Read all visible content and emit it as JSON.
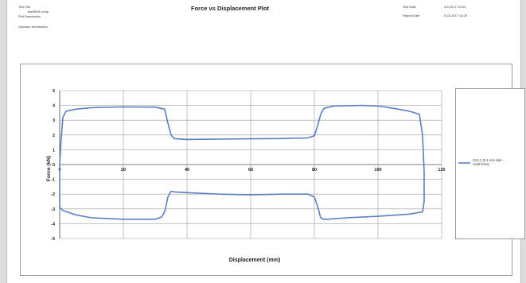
{
  "header": {
    "test_file_label": "Test File",
    "test_file_value": "test9916 comp",
    "plot_description_label": "Plot Description",
    "operator_label": "Operator Information",
    "test_date_label": "Test Date",
    "test_date_value": "4.6.2017 13:35",
    "report_date_label": "Report Date",
    "report_date_value": "5.15.2017 14:25"
  },
  "chart_data": {
    "type": "line",
    "title": "Force vs Displacement Plot",
    "xlabel": "Displacement (mm)",
    "ylabel": "Force (kN)",
    "xlim": [
      0,
      120
    ],
    "ylim": [
      -5,
      5
    ],
    "xticks": [
      0,
      20,
      40,
      60,
      80,
      100,
      120
    ],
    "yticks": [
      -5,
      -4,
      -3,
      -2,
      -1,
      0,
      1,
      2,
      3,
      4,
      5
    ],
    "grid": true,
    "legend_position": "right",
    "series": [
      {
        "name": "SV1.2 (0.1 m/s side - Axial force)",
        "color": "#5b7fc4",
        "points": [
          [
            0,
            0
          ],
          [
            0.4,
            1.5
          ],
          [
            1,
            3.2
          ],
          [
            2,
            3.6
          ],
          [
            5,
            3.75
          ],
          [
            10,
            3.85
          ],
          [
            20,
            3.9
          ],
          [
            30,
            3.88
          ],
          [
            33,
            3.75
          ],
          [
            34,
            2.8
          ],
          [
            35,
            2.0
          ],
          [
            36,
            1.75
          ],
          [
            40,
            1.7
          ],
          [
            50,
            1.72
          ],
          [
            60,
            1.74
          ],
          [
            70,
            1.76
          ],
          [
            78,
            1.8
          ],
          [
            80,
            1.95
          ],
          [
            81,
            2.6
          ],
          [
            82,
            3.4
          ],
          [
            83,
            3.8
          ],
          [
            86,
            3.95
          ],
          [
            95,
            4.0
          ],
          [
            100,
            3.95
          ],
          [
            105,
            3.8
          ],
          [
            110,
            3.6
          ],
          [
            113,
            3.4
          ],
          [
            114,
            2.0
          ],
          [
            114.5,
            -0.5
          ],
          [
            114.5,
            -2.5
          ],
          [
            114,
            -3.2
          ],
          [
            110,
            -3.35
          ],
          [
            100,
            -3.5
          ],
          [
            90,
            -3.6
          ],
          [
            84,
            -3.7
          ],
          [
            83,
            -3.7
          ],
          [
            82,
            -3.6
          ],
          [
            81,
            -2.8
          ],
          [
            80,
            -2.2
          ],
          [
            78,
            -2.0
          ],
          [
            70,
            -2.0
          ],
          [
            60,
            -2.05
          ],
          [
            50,
            -2.0
          ],
          [
            40,
            -1.9
          ],
          [
            36,
            -1.85
          ],
          [
            35,
            -1.8
          ],
          [
            34,
            -2.2
          ],
          [
            33,
            -3.2
          ],
          [
            32,
            -3.55
          ],
          [
            30,
            -3.7
          ],
          [
            20,
            -3.7
          ],
          [
            10,
            -3.6
          ],
          [
            5,
            -3.4
          ],
          [
            1,
            -3.1
          ],
          [
            0,
            -2.9
          ],
          [
            0,
            -1.5
          ],
          [
            0,
            0
          ]
        ]
      }
    ]
  }
}
